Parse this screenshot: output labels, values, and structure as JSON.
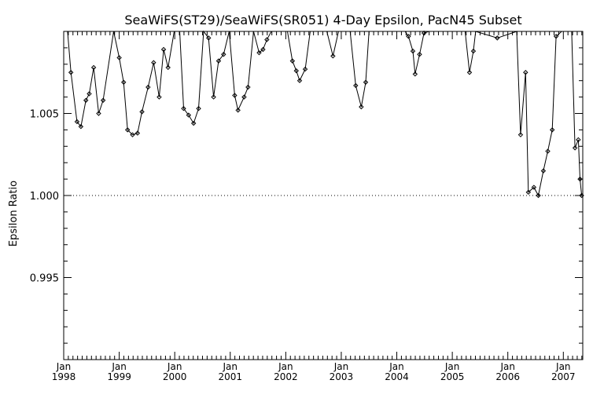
{
  "chart_data": {
    "type": "line",
    "title": "SeaWiFS(ST29)/SeaWiFS(SR051) 4-Day Epsilon, PacN45 Subset",
    "xlabel": "",
    "ylabel": "Epsilon Ratio",
    "xlim": [
      1998.0,
      2007.35
    ],
    "ylim": [
      0.99,
      1.01
    ],
    "y_ticks": [
      {
        "value": 0.995,
        "label": "0.995"
      },
      {
        "value": 1.0,
        "label": "1.000"
      },
      {
        "value": 1.005,
        "label": "1.005"
      }
    ],
    "x_ticks": [
      {
        "value": 1998,
        "label": "Jan\n1998"
      },
      {
        "value": 1999,
        "label": "Jan\n1999"
      },
      {
        "value": 2000,
        "label": "Jan\n2000"
      },
      {
        "value": 2001,
        "label": "Jan\n2001"
      },
      {
        "value": 2002,
        "label": "Jan\n2002"
      },
      {
        "value": 2003,
        "label": "Jan\n2003"
      },
      {
        "value": 2004,
        "label": "Jan\n2004"
      },
      {
        "value": 2005,
        "label": "Jan\n2005"
      },
      {
        "value": 2006,
        "label": "Jan\n2006"
      },
      {
        "value": 2007,
        "label": "Jan\n2007"
      }
    ],
    "reference_line": {
      "y": 1.0,
      "style": "dotted"
    },
    "grid": false,
    "legend": "none",
    "series": [
      {
        "name": "",
        "x": [
          1998.07,
          1998.13,
          1998.24,
          1998.31,
          1998.4,
          1998.46,
          1998.54,
          1998.63,
          1998.71,
          1998.9,
          1999.0,
          1999.08,
          1999.15,
          1999.24,
          1999.33,
          1999.41,
          1999.52,
          1999.62,
          1999.72,
          1999.8,
          1999.88,
          1999.99,
          2000.09,
          2000.16,
          2000.25,
          2000.34,
          2000.43,
          2000.52,
          2000.61,
          2000.7,
          2000.79,
          2000.88,
          2000.98,
          2001.08,
          2001.14,
          2001.25,
          2001.32,
          2001.42,
          2001.52,
          2001.59,
          2001.66,
          2001.74,
          2001.83,
          2002.03,
          2002.12,
          2002.19,
          2002.25,
          2002.35,
          2002.44,
          2002.53,
          2002.74,
          2002.85,
          2002.95,
          2003.16,
          2003.26,
          2003.36,
          2003.44,
          2003.5,
          2003.6,
          2004.15,
          2004.21,
          2004.29,
          2004.33,
          2004.41,
          2004.49,
          2004.58,
          2005.2,
          2005.23,
          2005.31,
          2005.38,
          2005.42,
          2005.81,
          2006.16,
          2006.23,
          2006.32,
          2006.37,
          2006.47,
          2006.55,
          2006.64,
          2006.72,
          2006.8,
          2006.87,
          2006.97,
          2007.15,
          2007.21,
          2007.27,
          2007.3,
          2007.33
        ],
        "y": [
          1.01,
          1.0075,
          1.0045,
          1.0042,
          1.0058,
          1.0062,
          1.0078,
          1.005,
          1.0058,
          1.01,
          1.0084,
          1.0069,
          1.004,
          1.0037,
          1.0038,
          1.0051,
          1.0066,
          1.0081,
          1.006,
          1.0089,
          1.0078,
          1.01,
          1.01,
          1.0053,
          1.0049,
          1.0044,
          1.0053,
          1.01,
          1.0096,
          1.006,
          1.0082,
          1.0086,
          1.01,
          1.0061,
          1.0052,
          1.006,
          1.0066,
          1.01,
          1.0087,
          1.0089,
          1.0095,
          1.01,
          1.01,
          1.01,
          1.0082,
          1.0076,
          1.007,
          1.0077,
          1.01,
          1.01,
          1.01,
          1.0085,
          1.01,
          1.01,
          1.0067,
          1.0054,
          1.0069,
          1.01,
          1.01,
          1.01,
          1.0097,
          1.0088,
          1.0074,
          1.0086,
          1.0099,
          1.01,
          1.01,
          1.01,
          1.0075,
          1.0088,
          1.01,
          1.0096,
          1.01,
          1.0037,
          1.0075,
          1.0002,
          1.0005,
          1.0,
          1.0015,
          1.0027,
          1.004,
          1.0097,
          1.01,
          1.01,
          1.0029,
          1.0034,
          1.001,
          1.0
        ],
        "color": "#000000"
      }
    ]
  }
}
